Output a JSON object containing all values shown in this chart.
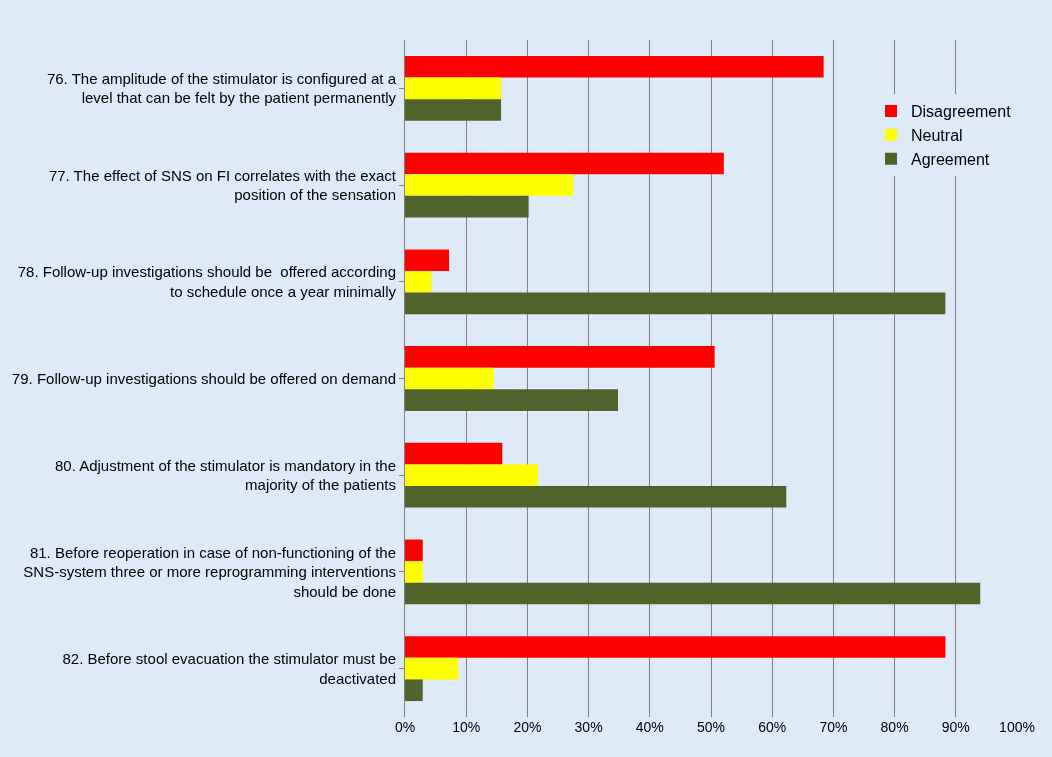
{
  "chart_data": {
    "type": "bar",
    "orientation": "horizontal",
    "categories": [
      "76. The amplitude of the stimulator is configured at a level that can be felt by the patient permanently",
      "77. The effect of SNS on FI correlates with the exact position of the sensation",
      "78. Follow-up investigations should be  offered according to schedule once a year minimally",
      "79. Follow-up investigations should be offered on demand",
      "80. Adjustment of the stimulator is mandatory in the majority of the patients",
      "81. Before reoperation in case of non-functioning of the SNS-system three or more reprogramming interventions should be done",
      "82. Before stool evacuation the stimulator must be deactivated"
    ],
    "series": [
      {
        "name": "Disagreement",
        "color": "#ff0000",
        "values": [
          68.4,
          52.1,
          7.2,
          50.6,
          15.9,
          2.9,
          88.3
        ]
      },
      {
        "name": "Neutral",
        "color": "#ffff00",
        "values": [
          15.7,
          27.5,
          4.3,
          14.5,
          21.7,
          2.9,
          8.7
        ]
      },
      {
        "name": "Agreement",
        "color": "#50632a",
        "values": [
          15.7,
          20.2,
          88.3,
          34.8,
          62.3,
          94.0,
          2.9
        ]
      }
    ],
    "xlim": [
      0,
      100
    ],
    "xticks": [
      {
        "value": 0,
        "label": "0%"
      },
      {
        "value": 10,
        "label": "10%"
      },
      {
        "value": 20,
        "label": "20%"
      },
      {
        "value": 30,
        "label": "30%"
      },
      {
        "value": 40,
        "label": "40%"
      },
      {
        "value": 50,
        "label": "50%"
      },
      {
        "value": 60,
        "label": "60%"
      },
      {
        "value": 70,
        "label": "70%"
      },
      {
        "value": 80,
        "label": "80%"
      },
      {
        "value": 90,
        "label": "90%"
      },
      {
        "value": 100,
        "label": "100%"
      }
    ],
    "grid": "x",
    "legend": "top right"
  }
}
